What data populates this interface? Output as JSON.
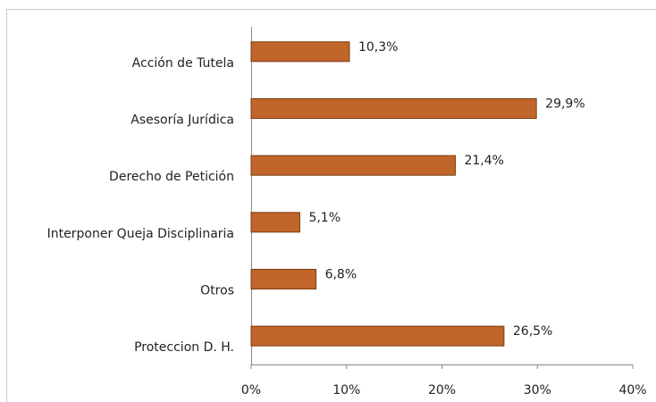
{
  "chart_data": {
    "type": "bar",
    "orientation": "horizontal",
    "categories": [
      "Acción de Tutela",
      "Asesoría Jurídica",
      "Derecho de Petición",
      "Interponer Queja Disciplinaria",
      "Otros",
      "Proteccion D. H."
    ],
    "values": [
      10.3,
      29.9,
      21.4,
      5.1,
      6.8,
      26.5
    ],
    "value_labels": [
      "10,3%",
      "29,9%",
      "21,4%",
      "5,1%",
      "6,8%",
      "26,5%"
    ],
    "color": "#c0662a",
    "xlim": [
      0,
      40
    ],
    "xticks": [
      {
        "value": 0,
        "label": "0%"
      },
      {
        "value": 10,
        "label": "10%"
      },
      {
        "value": 20,
        "label": "20%"
      },
      {
        "value": 30,
        "label": "30%"
      },
      {
        "value": 40,
        "label": "40%"
      }
    ],
    "grid": false
  }
}
